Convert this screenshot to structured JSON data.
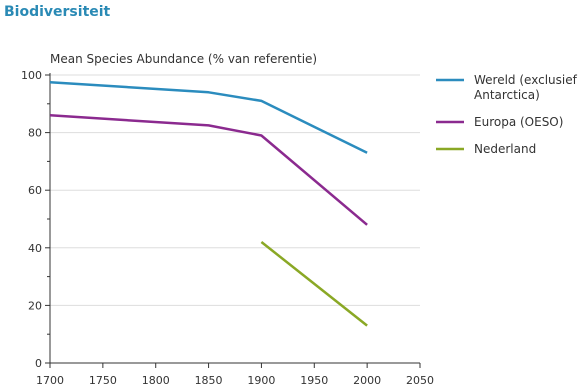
{
  "chart_data": {
    "type": "line",
    "title": "Biodiversiteit",
    "ylabel": "Mean Species Abundance (% van referentie)",
    "xlabel": "",
    "xlim": [
      1700,
      2050
    ],
    "ylim": [
      0,
      100
    ],
    "x_ticks": [
      1700,
      1750,
      1800,
      1850,
      1900,
      1950,
      2000,
      2050
    ],
    "y_ticks": [
      0,
      20,
      40,
      60,
      80,
      100
    ],
    "grid": "horizontal",
    "legend_position": "right",
    "series": [
      {
        "name_lines": [
          "Wereld (exclusief",
          "Antarctica)"
        ],
        "color": "#2b8cbe",
        "points": [
          [
            1700,
            97.5
          ],
          [
            1850,
            94
          ],
          [
            1900,
            91
          ],
          [
            2000,
            73
          ]
        ]
      },
      {
        "name_lines": [
          "Europa (OESO)"
        ],
        "color": "#8b2a8f",
        "points": [
          [
            1700,
            86
          ],
          [
            1850,
            82.5
          ],
          [
            1900,
            79
          ],
          [
            2000,
            48
          ]
        ]
      },
      {
        "name_lines": [
          "Nederland"
        ],
        "color": "#8aa825",
        "points": [
          [
            1900,
            42
          ],
          [
            2000,
            13
          ]
        ]
      }
    ]
  }
}
